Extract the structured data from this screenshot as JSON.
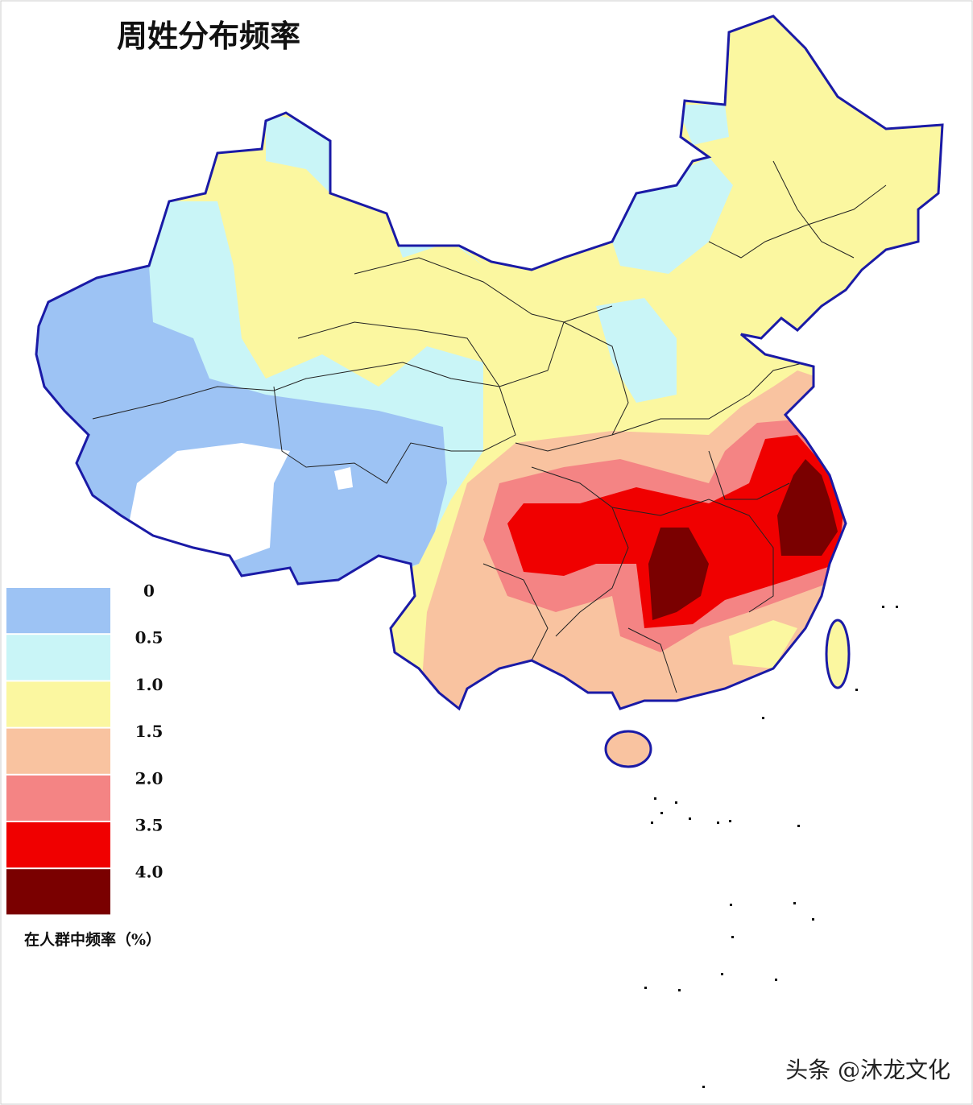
{
  "title": "周姓分布频率",
  "legend": {
    "items": [
      {
        "label": "0",
        "color": "#9dc3f4"
      },
      {
        "label": "0.5",
        "color": "#c9f5f7"
      },
      {
        "label": "1.0",
        "color": "#fbf7a0"
      },
      {
        "label": "1.5",
        "color": "#f9c3a0"
      },
      {
        "label": "2.0",
        "color": "#f48484"
      },
      {
        "label": "3.5",
        "color": "#f00000"
      },
      {
        "label": "4.0",
        "color": "#7a0000"
      }
    ],
    "caption": "在人群中频率（%）"
  },
  "watermark": "头条 @沐龙文化"
}
